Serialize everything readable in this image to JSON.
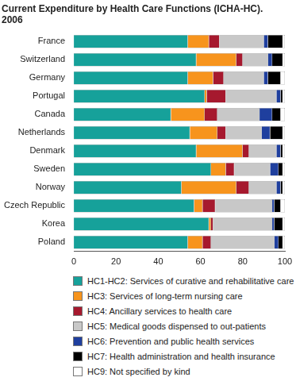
{
  "chart_data": {
    "type": "bar",
    "orientation": "horizontal",
    "stacked": true,
    "grid": false,
    "legend": "bottom",
    "title": [
      "Current Expenditure by Health Care Functions (ICHA-HC).",
      "2006"
    ],
    "categories": [
      "France",
      "Switzerland",
      "Germany",
      "Portugal",
      "Canada",
      "Netherlands",
      "Denmark",
      "Sweden",
      "Norway",
      "Czech Republic",
      "Korea",
      "Poland"
    ],
    "xlim": [
      0,
      100
    ],
    "xticks": [
      0,
      20,
      40,
      60,
      80,
      100
    ],
    "series": [
      {
        "name": "HC1-HC2: Services of curative and rehabilitative care",
        "color": "#16a19a",
        "values": [
          54,
          58,
          54,
          62,
          46,
          55,
          58,
          65,
          51,
          57,
          64,
          54
        ]
      },
      {
        "name": "HC3: Services of long-term nursing care",
        "color": "#f7941d",
        "values": [
          10,
          19,
          12,
          1,
          16,
          13,
          22,
          7,
          26,
          4,
          1,
          7
        ]
      },
      {
        "name": "HC4: Ancillary services to health care",
        "color": "#a6192e",
        "values": [
          5,
          3,
          5,
          9,
          6,
          4,
          3,
          4,
          6,
          6,
          1,
          4
        ]
      },
      {
        "name": "HC5: Medical goods dispensed to out-patients",
        "color": "#c8c8c8",
        "values": [
          21,
          12,
          19,
          24,
          20,
          17,
          13,
          17,
          13,
          27,
          28,
          30
        ]
      },
      {
        "name": "HC6: Prevention and public health services",
        "color": "#1f3f9e",
        "values": [
          2,
          2,
          2,
          2,
          6,
          4,
          2,
          4,
          2,
          1,
          1,
          2
        ]
      },
      {
        "name": "HC7: Health administration and health insurance",
        "color": "#000000",
        "values": [
          7,
          5,
          6,
          1,
          4,
          6,
          1,
          2,
          1,
          3,
          4,
          2
        ]
      },
      {
        "name": "HC9: Not specified by kind",
        "color": "#ffffff",
        "values": [
          1,
          1,
          2,
          1,
          2,
          1,
          1,
          1,
          1,
          2,
          1,
          1
        ]
      }
    ]
  }
}
